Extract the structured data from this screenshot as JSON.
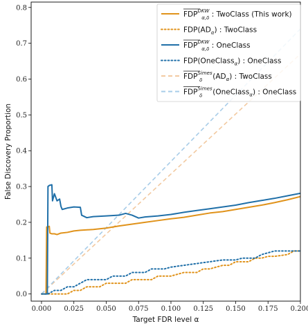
{
  "chart_data": {
    "type": "line",
    "xlabel": "Target FDR level α",
    "ylabel": "False Discovery Proportion",
    "xlim": [
      -0.008,
      0.2
    ],
    "ylim": [
      -0.02,
      0.815
    ],
    "x_ticks": [
      "0.000",
      "0.025",
      "0.050",
      "0.075",
      "0.100",
      "0.125",
      "0.150",
      "0.175",
      "0.200"
    ],
    "x_tick_values": [
      0,
      0.025,
      0.05,
      0.075,
      0.1,
      0.125,
      0.15,
      0.175,
      0.2
    ],
    "y_ticks": [
      "0.0",
      "0.1",
      "0.2",
      "0.3",
      "0.4",
      "0.5",
      "0.6",
      "0.7",
      "0.8"
    ],
    "y_tick_values": [
      0,
      0.1,
      0.2,
      0.3,
      0.4,
      0.5,
      0.6,
      0.7,
      0.8
    ],
    "grid": false,
    "legend_position": "top-right",
    "series": [
      {
        "name": "FDP^DKW_α,δ : TwoClass (This work)",
        "legend_main": "FDP",
        "legend_sup": "DKW",
        "legend_sub": "α,δ",
        "legend_rest": " : TwoClass (This work)",
        "overline": true,
        "color": "#e0921a",
        "style": "solid",
        "x": [
          0.0,
          0.0035,
          0.004,
          0.005,
          0.006,
          0.0065,
          0.008,
          0.01,
          0.012,
          0.015,
          0.02,
          0.025,
          0.03,
          0.04,
          0.05,
          0.06,
          0.07,
          0.08,
          0.09,
          0.1,
          0.11,
          0.12,
          0.13,
          0.14,
          0.15,
          0.16,
          0.17,
          0.18,
          0.19,
          0.2
        ],
        "y": [
          0.0,
          0.0,
          0.187,
          0.187,
          0.189,
          0.17,
          0.168,
          0.168,
          0.166,
          0.17,
          0.172,
          0.176,
          0.178,
          0.18,
          0.184,
          0.19,
          0.195,
          0.2,
          0.205,
          0.21,
          0.214,
          0.22,
          0.226,
          0.23,
          0.236,
          0.242,
          0.248,
          0.255,
          0.263,
          0.272
        ]
      },
      {
        "name": "FDP(AD_α) : TwoClass",
        "legend_main": "FDP(AD",
        "legend_sup": "",
        "legend_sub": "α",
        "legend_rest": ") : TwoClass",
        "overline": false,
        "color": "#e0921a",
        "style": "dotted",
        "x": [
          0.0,
          0.01,
          0.02,
          0.025,
          0.03,
          0.035,
          0.045,
          0.05,
          0.065,
          0.07,
          0.085,
          0.09,
          0.1,
          0.11,
          0.12,
          0.125,
          0.13,
          0.14,
          0.145,
          0.15,
          0.16,
          0.165,
          0.17,
          0.175,
          0.18,
          0.19,
          0.195,
          0.2
        ],
        "y": [
          0.0,
          0.0,
          0.0,
          0.01,
          0.01,
          0.02,
          0.02,
          0.03,
          0.03,
          0.04,
          0.04,
          0.05,
          0.05,
          0.06,
          0.06,
          0.07,
          0.07,
          0.08,
          0.08,
          0.09,
          0.09,
          0.1,
          0.1,
          0.105,
          0.105,
          0.11,
          0.12,
          0.12
        ]
      },
      {
        "name": "FDP^DKW_α,δ : OneClass",
        "legend_main": "FDP",
        "legend_sup": "DKW",
        "legend_sub": "α,δ",
        "legend_rest": " : OneClass",
        "overline": true,
        "color": "#1f6fa8",
        "style": "solid",
        "x": [
          0.0,
          0.0045,
          0.005,
          0.006,
          0.008,
          0.0085,
          0.01,
          0.012,
          0.014,
          0.015,
          0.016,
          0.02,
          0.025,
          0.03,
          0.031,
          0.035,
          0.04,
          0.05,
          0.06,
          0.065,
          0.07,
          0.075,
          0.08,
          0.09,
          0.1,
          0.11,
          0.12,
          0.13,
          0.14,
          0.15,
          0.16,
          0.17,
          0.18,
          0.19,
          0.2
        ],
        "y": [
          0.0,
          0.0,
          0.3,
          0.303,
          0.305,
          0.26,
          0.28,
          0.26,
          0.265,
          0.245,
          0.236,
          0.24,
          0.243,
          0.242,
          0.22,
          0.213,
          0.216,
          0.218,
          0.22,
          0.225,
          0.22,
          0.212,
          0.215,
          0.218,
          0.222,
          0.228,
          0.233,
          0.238,
          0.243,
          0.248,
          0.255,
          0.261,
          0.267,
          0.274,
          0.281
        ]
      },
      {
        "name": "FDP(OneClass_α) : OneClass",
        "legend_main": "FDP(OneClass",
        "legend_sup": "",
        "legend_sub": "α",
        "legend_rest": ") : OneClass",
        "overline": false,
        "color": "#1f6fa8",
        "style": "dotted",
        "x": [
          0.0,
          0.005,
          0.01,
          0.015,
          0.02,
          0.025,
          0.03,
          0.035,
          0.04,
          0.05,
          0.055,
          0.065,
          0.07,
          0.08,
          0.085,
          0.095,
          0.1,
          0.11,
          0.12,
          0.13,
          0.14,
          0.15,
          0.155,
          0.165,
          0.17,
          0.18,
          0.185,
          0.195,
          0.2
        ],
        "y": [
          0.0,
          0.0,
          0.01,
          0.01,
          0.02,
          0.02,
          0.03,
          0.04,
          0.04,
          0.04,
          0.05,
          0.05,
          0.06,
          0.06,
          0.07,
          0.07,
          0.075,
          0.08,
          0.085,
          0.09,
          0.095,
          0.095,
          0.1,
          0.1,
          0.11,
          0.12,
          0.12,
          0.12,
          0.12
        ]
      },
      {
        "name": "FDP^Simes_δ(AD_α) : TwoClass",
        "legend_main": "FDP",
        "legend_sup": "Simes",
        "legend_sub": "δ",
        "legend_rest": "(AD",
        "legend_rest_sub": "α",
        "legend_rest2": ") : TwoClass",
        "overline": true,
        "color": "#f2c9a0",
        "style": "dashed",
        "x": [
          0.0,
          0.2
        ],
        "y": [
          0.0,
          0.67
        ]
      },
      {
        "name": "FDP^Simes_δ(OneClass_α) : OneClass",
        "legend_main": "FDP",
        "legend_sup": "Simes",
        "legend_sub": "δ",
        "legend_rest": "(OneClass",
        "legend_rest_sub": "α",
        "legend_rest2": ") : OneClass",
        "overline": true,
        "color": "#a7cce8",
        "style": "dashed",
        "x": [
          0.0,
          0.2
        ],
        "y": [
          0.0,
          0.74
        ]
      }
    ]
  }
}
